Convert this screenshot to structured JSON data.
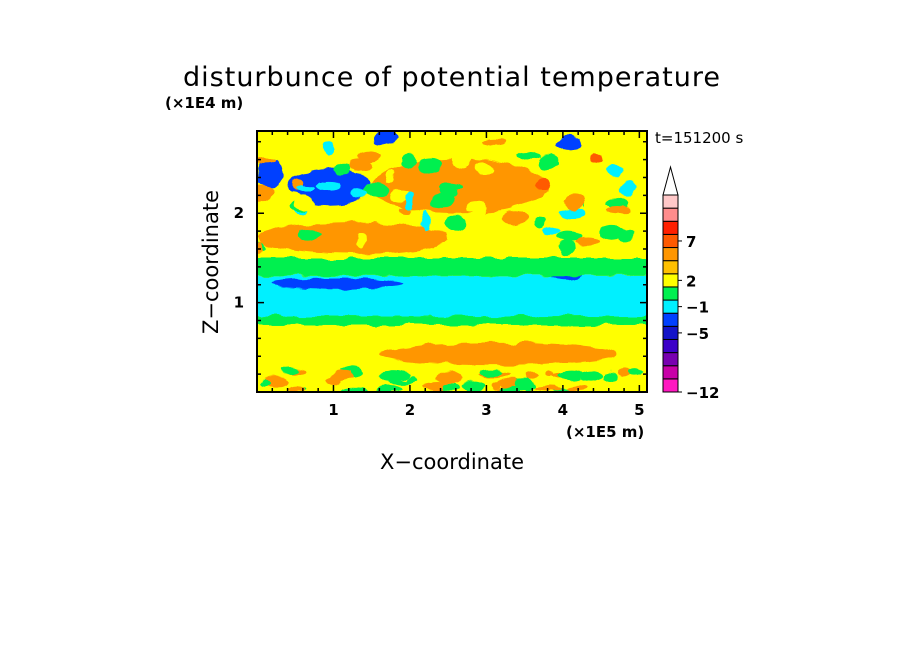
{
  "chart_data": {
    "type": "heatmap",
    "title": "disturbunce of potential temperature",
    "xlabel": "X−coordinate",
    "ylabel": "Z−coordinate",
    "x_unit": "(×1E5 m)",
    "y_unit": "(×1E4 m)",
    "time_label": "t=151200 s",
    "xlim": [
      0,
      5.1
    ],
    "ylim": [
      0,
      2.92
    ],
    "x_ticks": [
      {
        "value": 1,
        "label": "1"
      },
      {
        "value": 2,
        "label": "2"
      },
      {
        "value": 3,
        "label": "3"
      },
      {
        "value": 4,
        "label": "4"
      },
      {
        "value": 5,
        "label": "5"
      }
    ],
    "y_ticks": [
      {
        "value": 1,
        "label": "1"
      },
      {
        "value": 2,
        "label": "2"
      }
    ],
    "colorbar": {
      "levels": [
        {
          "color": "#ff18c0",
          "label": "−12"
        },
        {
          "color": "#c800a8",
          "label": ""
        },
        {
          "color": "#7800b0",
          "label": ""
        },
        {
          "color": "#3c00c8",
          "label": ""
        },
        {
          "color": "#1414c8",
          "label": "−5"
        },
        {
          "color": "#0040ff",
          "label": ""
        },
        {
          "color": "#00f0ff",
          "label": "−1"
        },
        {
          "color": "#00f050",
          "label": ""
        },
        {
          "color": "#ffff00",
          "label": "2"
        },
        {
          "color": "#ffc000",
          "label": ""
        },
        {
          "color": "#ff9600",
          "label": ""
        },
        {
          "color": "#ff5a00",
          "label": "7"
        },
        {
          "color": "#ff2000",
          "label": ""
        },
        {
          "color": "#ff8c8c",
          "label": ""
        },
        {
          "color": "#ffc8c8",
          "label": ""
        }
      ],
      "overflow_arrow": "top"
    },
    "features": [
      {
        "value_class": "yellow",
        "x": [
          0.0,
          5.1
        ],
        "z": [
          0.0,
          0.75
        ]
      },
      {
        "value_class": "orange",
        "x": [
          1.6,
          4.7
        ],
        "z": [
          0.3,
          0.55
        ]
      },
      {
        "value_class": "green",
        "x": [
          0.0,
          5.1
        ],
        "z": [
          0.75,
          0.85
        ]
      },
      {
        "value_class": "cyan",
        "x": [
          0.0,
          5.1
        ],
        "z": [
          0.85,
          1.3
        ]
      },
      {
        "value_class": "blue",
        "x": [
          0.2,
          1.9
        ],
        "z": [
          1.15,
          1.27
        ]
      },
      {
        "value_class": "blue",
        "x": [
          3.8,
          4.3
        ],
        "z": [
          1.25,
          1.45
        ]
      },
      {
        "value_class": "green",
        "x": [
          0.0,
          5.1
        ],
        "z": [
          1.3,
          1.5
        ]
      },
      {
        "value_class": "yellow",
        "x": [
          0.0,
          5.1
        ],
        "z": [
          1.5,
          2.1
        ]
      },
      {
        "value_class": "orange",
        "x": [
          0.0,
          2.5
        ],
        "z": [
          1.55,
          1.9
        ]
      },
      {
        "value_class": "orange",
        "x": [
          1.5,
          3.8
        ],
        "z": [
          2.0,
          2.6
        ]
      },
      {
        "value_class": "blue",
        "x": [
          0.0,
          0.35
        ],
        "z": [
          2.3,
          2.6
        ]
      },
      {
        "value_class": "blue",
        "x": [
          0.4,
          1.5
        ],
        "z": [
          2.1,
          2.5
        ]
      }
    ]
  }
}
